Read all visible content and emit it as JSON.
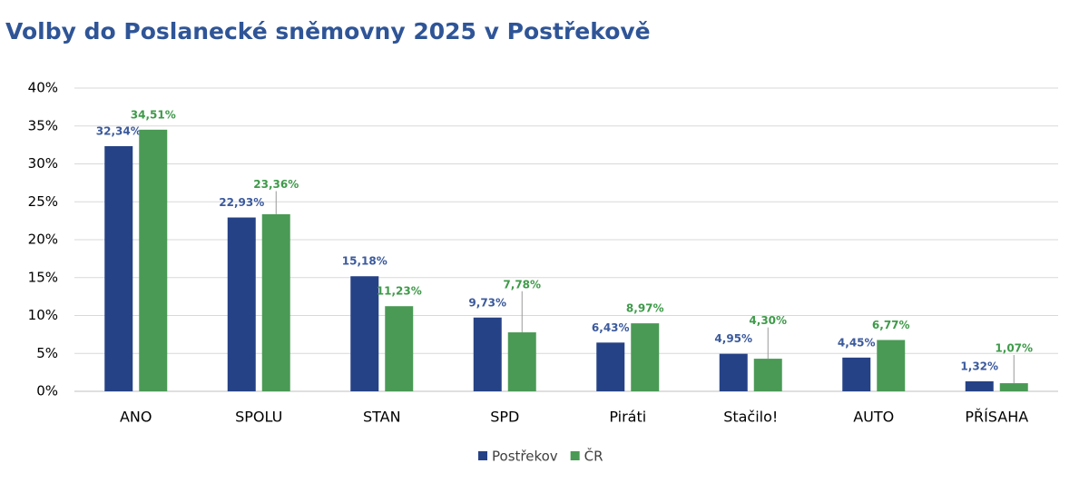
{
  "chart_data": {
    "type": "bar",
    "title": "Volby do Poslanecké sněmovny 2025 v Postřekově",
    "categories": [
      "ANO",
      "SPOLU",
      "STAN",
      "SPD",
      "Piráti",
      "Stačilo!",
      "AUTO",
      "PŘÍSAHA"
    ],
    "series": [
      {
        "name": "Postřekov",
        "color": "#264286",
        "label_color": "#3b5a9c",
        "values": [
          32.34,
          22.93,
          15.18,
          9.73,
          6.43,
          4.95,
          4.45,
          1.32
        ],
        "value_labels": [
          "32,34%",
          "22,93%",
          "15,18%",
          "9,73%",
          "6,43%",
          "4,95%",
          "4,45%",
          "1,32%"
        ]
      },
      {
        "name": "ČR",
        "color": "#4a9a55",
        "label_color": "#3f9a4a",
        "values": [
          34.51,
          23.36,
          11.23,
          7.78,
          8.97,
          4.3,
          6.77,
          1.07
        ],
        "value_labels": [
          "34,51%",
          "23,36%",
          "11,23%",
          "7,78%",
          "8,97%",
          "4,30%",
          "6,77%",
          "1,07%"
        ]
      }
    ],
    "ylim": [
      0,
      40
    ],
    "yticks": [
      {
        "value": 0,
        "label": "0%"
      },
      {
        "value": 5,
        "label": "5%"
      },
      {
        "value": 10,
        "label": "10%"
      },
      {
        "value": 15,
        "label": "15%"
      },
      {
        "value": 20,
        "label": "20%"
      },
      {
        "value": 25,
        "label": "25%"
      },
      {
        "value": 30,
        "label": "30%"
      },
      {
        "value": 35,
        "label": "35%"
      },
      {
        "value": 40,
        "label": "40%"
      }
    ],
    "grid": true,
    "legend": "bottom"
  }
}
